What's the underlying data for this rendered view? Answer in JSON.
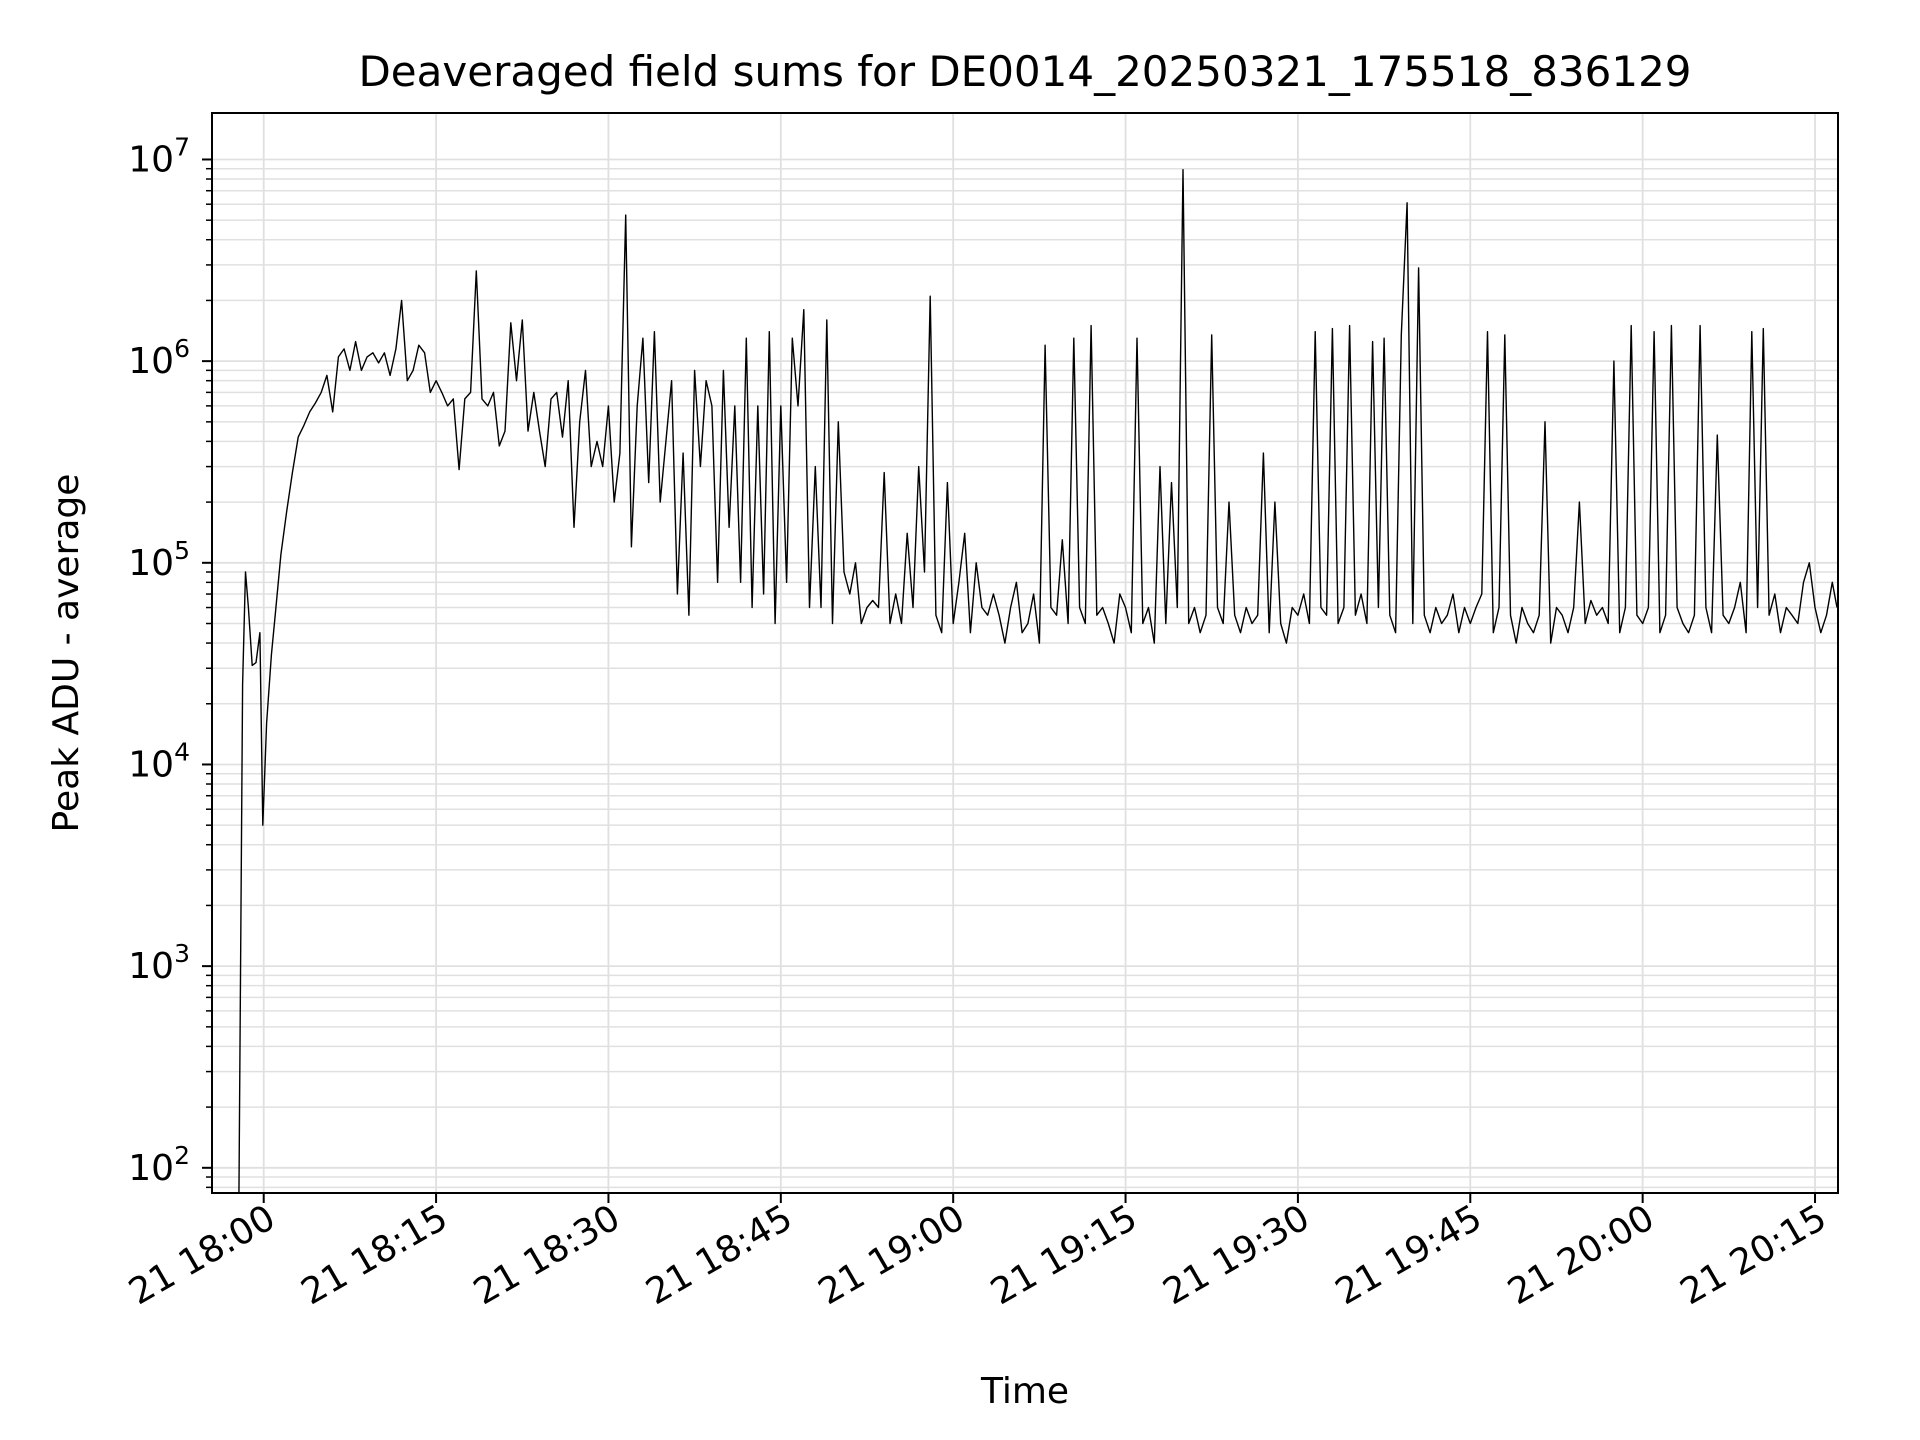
{
  "chart_data": {
    "type": "line",
    "title": "Deaveraged field sums for DE0014_20250321_175518_836129",
    "xlabel": "Time",
    "ylabel": "Peak ADU - average",
    "y_scale": "log",
    "ylim": [
      75,
      17000000
    ],
    "xlim": [
      "21 17:55:30",
      "21 20:17:00"
    ],
    "x_ticks": [
      {
        "value": "21 18:00",
        "label": "21 18:00"
      },
      {
        "value": "21 18:15",
        "label": "21 18:15"
      },
      {
        "value": "21 18:30",
        "label": "21 18:30"
      },
      {
        "value": "21 18:45",
        "label": "21 18:45"
      },
      {
        "value": "21 19:00",
        "label": "21 19:00"
      },
      {
        "value": "21 19:15",
        "label": "21 19:15"
      },
      {
        "value": "21 19:30",
        "label": "21 19:30"
      },
      {
        "value": "21 19:45",
        "label": "21 19:45"
      },
      {
        "value": "21 20:00",
        "label": "21 20:00"
      },
      {
        "value": "21 20:15",
        "label": "21 20:15"
      }
    ],
    "y_ticks": [
      {
        "value": 100,
        "base": "10",
        "exp": "2"
      },
      {
        "value": 1000,
        "base": "10",
        "exp": "3"
      },
      {
        "value": 10000,
        "base": "10",
        "exp": "4"
      },
      {
        "value": 100000,
        "base": "10",
        "exp": "5"
      },
      {
        "value": 1000000,
        "base": "10",
        "exp": "6"
      },
      {
        "value": 10000000,
        "base": "10",
        "exp": "7"
      }
    ],
    "grid": true,
    "line_color": "#000000",
    "grid_color": "#e0e0e0",
    "series": [
      {
        "x": [
          "21 17:57:50",
          "21 17:58:10",
          "21 17:58:25",
          "21 17:58:40",
          "21 17:59:00",
          "21 17:59:20",
          "21 17:59:40",
          "21 17:59:55",
          "21 18:00:15",
          "21 18:00:40",
          "21 18:01:00",
          "21 18:01:30",
          "21 18:02:00",
          "21 18:02:30",
          "21 18:03:00",
          "21 18:03:30",
          "21 18:04:00",
          "21 18:04:30",
          "21 18:05:00",
          "21 18:05:30",
          "21 18:06:00",
          "21 18:06:30",
          "21 18:07:00",
          "21 18:07:30",
          "21 18:08:00",
          "21 18:08:30",
          "21 18:09:00",
          "21 18:09:30",
          "21 18:10:00",
          "21 18:10:30",
          "21 18:11:00",
          "21 18:11:30",
          "21 18:12:00",
          "21 18:12:30",
          "21 18:13:00",
          "21 18:13:30",
          "21 18:14:00",
          "21 18:14:30",
          "21 18:15:00",
          "21 18:15:30",
          "21 18:16:00",
          "21 18:16:30",
          "21 18:17:00",
          "21 18:17:30",
          "21 18:18:00",
          "21 18:18:30",
          "21 18:19:00",
          "21 18:19:30",
          "21 18:20:00",
          "21 18:20:30",
          "21 18:21:00",
          "21 18:21:30",
          "21 18:22:00",
          "21 18:22:30",
          "21 18:23:00",
          "21 18:23:30",
          "21 18:24:00",
          "21 18:24:30",
          "21 18:25:00",
          "21 18:25:30",
          "21 18:26:00",
          "21 18:26:30",
          "21 18:27:00",
          "21 18:27:30",
          "21 18:28:00",
          "21 18:28:30",
          "21 18:29:00",
          "21 18:29:30",
          "21 18:30:00",
          "21 18:30:30",
          "21 18:31:00",
          "21 18:31:30",
          "21 18:32:00",
          "21 18:32:30",
          "21 18:33:00",
          "21 18:33:30",
          "21 18:34:00",
          "21 18:34:30",
          "21 18:35:00",
          "21 18:35:30",
          "21 18:36:00",
          "21 18:36:30",
          "21 18:37:00",
          "21 18:37:30",
          "21 18:38:00",
          "21 18:38:30",
          "21 18:39:00",
          "21 18:39:30",
          "21 18:40:00",
          "21 18:40:30",
          "21 18:41:00",
          "21 18:41:30",
          "21 18:42:00",
          "21 18:42:30",
          "21 18:43:00",
          "21 18:43:30",
          "21 18:44:00",
          "21 18:44:30",
          "21 18:45:00",
          "21 18:45:30",
          "21 18:46:00",
          "21 18:46:30",
          "21 18:47:00",
          "21 18:47:30",
          "21 18:48:00",
          "21 18:48:30",
          "21 18:49:00",
          "21 18:49:30",
          "21 18:50:00",
          "21 18:50:30",
          "21 18:51:00",
          "21 18:51:30",
          "21 18:52:00",
          "21 18:52:30",
          "21 18:53:00",
          "21 18:53:30",
          "21 18:54:00",
          "21 18:54:30",
          "21 18:55:00",
          "21 18:55:30",
          "21 18:56:00",
          "21 18:56:30",
          "21 18:57:00",
          "21 18:57:30",
          "21 18:58:00",
          "21 18:58:30",
          "21 18:59:00",
          "21 18:59:30",
          "21 19:00:00",
          "21 19:00:30",
          "21 19:01:00",
          "21 19:01:30",
          "21 19:02:00",
          "21 19:02:30",
          "21 19:03:00",
          "21 19:03:30",
          "21 19:04:00",
          "21 19:04:30",
          "21 19:05:00",
          "21 19:05:30",
          "21 19:06:00",
          "21 19:06:30",
          "21 19:07:00",
          "21 19:07:30",
          "21 19:08:00",
          "21 19:08:30",
          "21 19:09:00",
          "21 19:09:30",
          "21 19:10:00",
          "21 19:10:30",
          "21 19:11:00",
          "21 19:11:30",
          "21 19:12:00",
          "21 19:12:30",
          "21 19:13:00",
          "21 19:13:30",
          "21 19:14:00",
          "21 19:14:30",
          "21 19:15:00",
          "21 19:15:30",
          "21 19:16:00",
          "21 19:16:30",
          "21 19:17:00",
          "21 19:17:30",
          "21 19:18:00",
          "21 19:18:30",
          "21 19:19:00",
          "21 19:19:30",
          "21 19:20:00",
          "21 19:20:30",
          "21 19:21:00",
          "21 19:21:30",
          "21 19:22:00",
          "21 19:22:30",
          "21 19:23:00",
          "21 19:23:30",
          "21 19:24:00",
          "21 19:24:30",
          "21 19:25:00",
          "21 19:25:30",
          "21 19:26:00",
          "21 19:26:30",
          "21 19:27:00",
          "21 19:27:30",
          "21 19:28:00",
          "21 19:28:30",
          "21 19:29:00",
          "21 19:29:30",
          "21 19:30:00",
          "21 19:30:30",
          "21 19:31:00",
          "21 19:31:30",
          "21 19:32:00",
          "21 19:32:30",
          "21 19:33:00",
          "21 19:33:30",
          "21 19:34:00",
          "21 19:34:30",
          "21 19:35:00",
          "21 19:35:30",
          "21 19:36:00",
          "21 19:36:30",
          "21 19:37:00",
          "21 19:37:30",
          "21 19:38:00",
          "21 19:38:30",
          "21 19:39:00",
          "21 19:39:30",
          "21 19:40:00",
          "21 19:40:30",
          "21 19:41:00",
          "21 19:41:30",
          "21 19:42:00",
          "21 19:42:30",
          "21 19:43:00",
          "21 19:43:30",
          "21 19:44:00",
          "21 19:44:30",
          "21 19:45:00",
          "21 19:45:30",
          "21 19:46:00",
          "21 19:46:30",
          "21 19:47:00",
          "21 19:47:30",
          "21 19:48:00",
          "21 19:48:30",
          "21 19:49:00",
          "21 19:49:30",
          "21 19:50:00",
          "21 19:50:30",
          "21 19:51:00",
          "21 19:51:30",
          "21 19:52:00",
          "21 19:52:30",
          "21 19:53:00",
          "21 19:53:30",
          "21 19:54:00",
          "21 19:54:30",
          "21 19:55:00",
          "21 19:55:30",
          "21 19:56:00",
          "21 19:56:30",
          "21 19:57:00",
          "21 19:57:30",
          "21 19:58:00",
          "21 19:58:30",
          "21 19:59:00",
          "21 19:59:30",
          "21 20:00:00",
          "21 20:00:30",
          "21 20:01:00",
          "21 20:01:30",
          "21 20:02:00",
          "21 20:02:30",
          "21 20:03:00",
          "21 20:03:30",
          "21 20:04:00",
          "21 20:04:30",
          "21 20:05:00",
          "21 20:05:30",
          "21 20:06:00",
          "21 20:06:30",
          "21 20:07:00",
          "21 20:07:30",
          "21 20:08:00",
          "21 20:08:30",
          "21 20:09:00",
          "21 20:09:30",
          "21 20:10:00",
          "21 20:10:30",
          "21 20:11:00",
          "21 20:11:30",
          "21 20:12:00",
          "21 20:12:30",
          "21 20:13:00",
          "21 20:13:30",
          "21 20:14:00",
          "21 20:14:30",
          "21 20:15:00",
          "21 20:15:30",
          "21 20:16:00",
          "21 20:16:30",
          "21 20:16:55"
        ],
        "y": [
          50,
          25000,
          90000,
          60000,
          31000,
          32000,
          45000,
          5000,
          16000,
          35000,
          55000,
          110000,
          180000,
          280000,
          420000,
          480000,
          560000,
          620000,
          700000,
          850000,
          560000,
          1050000,
          1150000,
          900000,
          1250000,
          900000,
          1050000,
          1100000,
          980000,
          1100000,
          850000,
          1150000,
          2000000,
          800000,
          900000,
          1200000,
          1100000,
          700000,
          800000,
          700000,
          600000,
          650000,
          290000,
          650000,
          700000,
          2800000,
          650000,
          600000,
          700000,
          380000,
          450000,
          1550000,
          800000,
          1600000,
          450000,
          700000,
          450000,
          300000,
          650000,
          700000,
          420000,
          800000,
          150000,
          500000,
          900000,
          300000,
          400000,
          300000,
          600000,
          200000,
          350000,
          5300000,
          120000,
          600000,
          1300000,
          250000,
          1400000,
          200000,
          400000,
          800000,
          70000,
          350000,
          55000,
          900000,
          300000,
          800000,
          600000,
          80000,
          900000,
          150000,
          600000,
          80000,
          1300000,
          60000,
          600000,
          70000,
          1400000,
          50000,
          600000,
          80000,
          1300000,
          600000,
          1800000,
          60000,
          300000,
          60000,
          1600000,
          50000,
          500000,
          90000,
          70000,
          100000,
          50000,
          60000,
          65000,
          60000,
          280000,
          50000,
          70000,
          50000,
          140000,
          60000,
          300000,
          90000,
          2100000,
          55000,
          45000,
          250000,
          50000,
          80000,
          140000,
          45000,
          100000,
          60000,
          55000,
          70000,
          55000,
          40000,
          60000,
          80000,
          45000,
          50000,
          70000,
          40000,
          1200000,
          60000,
          55000,
          130000,
          50000,
          1300000,
          60000,
          50000,
          1500000,
          55000,
          60000,
          50000,
          40000,
          70000,
          60000,
          45000,
          1300000,
          50000,
          60000,
          40000,
          300000,
          50000,
          250000,
          60000,
          8900000,
          50000,
          60000,
          45000,
          55000,
          1350000,
          60000,
          50000,
          200000,
          55000,
          45000,
          60000,
          50000,
          55000,
          350000,
          45000,
          200000,
          50000,
          40000,
          60000,
          55000,
          70000,
          50000,
          1400000,
          60000,
          55000,
          1450000,
          50000,
          60000,
          1500000,
          55000,
          70000,
          50000,
          1250000,
          60000,
          1300000,
          55000,
          45000,
          1350000,
          6100000,
          50000,
          2900000,
          55000,
          45000,
          60000,
          50000,
          55000,
          70000,
          45000,
          60000,
          50000,
          60000,
          70000,
          1400000,
          45000,
          60000,
          1350000,
          55000,
          40000,
          60000,
          50000,
          45000,
          55000,
          500000,
          40000,
          60000,
          55000,
          45000,
          60000,
          200000,
          50000,
          65000,
          55000,
          60000,
          50000,
          1000000,
          45000,
          60000,
          1500000,
          55000,
          50000,
          60000,
          1400000,
          45000,
          55000,
          1500000,
          60000,
          50000,
          45000,
          55000,
          1500000,
          60000,
          45000,
          430000,
          55000,
          50000,
          60000,
          80000,
          45000,
          1400000,
          60000,
          1450000,
          55000,
          70000,
          45000,
          60000,
          55000,
          50000,
          80000,
          100000,
          60000,
          45000,
          55000,
          80000,
          60000
        ]
      }
    ]
  }
}
